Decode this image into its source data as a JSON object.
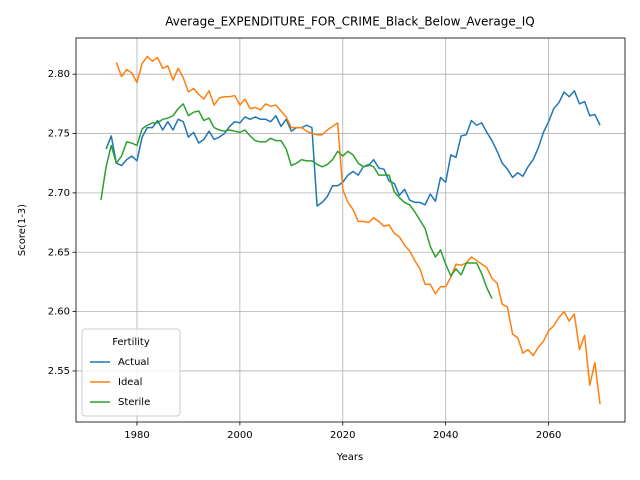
{
  "chart_data": {
    "type": "line",
    "title": "Average_EXPENDITURE_FOR_CRIME_Black_Below_Average_IQ",
    "x_label": "Years",
    "y_label": "Score(1-3)",
    "legend_title": "Fertility",
    "legend": "lower left",
    "grid": true,
    "xlim": [
      1968.15,
      2074.85
    ],
    "xticks": [
      1980,
      2000,
      2020,
      2040,
      2060
    ],
    "ylim": [
      2.507,
      2.8305
    ],
    "yticks": [
      2.55,
      {
        "value": 2.6,
        "label": "2.60"
      },
      2.65,
      {
        "value": 2.7,
        "label": "2.70"
      },
      2.75,
      {
        "value": 2.8,
        "label": "2.80"
      }
    ],
    "x": [
      1973,
      1974,
      1975,
      1976,
      1977,
      1978,
      1979,
      1980,
      1981,
      1982,
      1983,
      1984,
      1985,
      1986,
      1987,
      1988,
      1989,
      1990,
      1991,
      1992,
      1993,
      1994,
      1995,
      1996,
      1997,
      1998,
      1999,
      2000,
      2001,
      2002,
      2003,
      2004,
      2005,
      2006,
      2007,
      2008,
      2009,
      2010,
      2011,
      2012,
      2013,
      2014,
      2015,
      2016,
      2017,
      2018,
      2019,
      2020,
      2021,
      2022,
      2023,
      2024,
      2025,
      2026,
      2027,
      2028,
      2029,
      2030,
      2031,
      2032,
      2033,
      2034,
      2035,
      2036,
      2037,
      2038,
      2039,
      2040,
      2041,
      2042,
      2043,
      2044,
      2045,
      2046,
      2047,
      2048,
      2049,
      2050,
      2051,
      2052,
      2053,
      2054,
      2055,
      2056,
      2057,
      2058,
      2059,
      2060,
      2061,
      2062,
      2063,
      2064,
      2065,
      2066,
      2067,
      2068,
      2069,
      2070
    ],
    "series": [
      {
        "name": "Actual",
        "color": "#1f77b4",
        "values": [
          null,
          2.737,
          2.748,
          2.725,
          2.723,
          2.728,
          2.731,
          2.727,
          2.747,
          2.755,
          2.755,
          2.761,
          2.753,
          2.76,
          2.753,
          2.762,
          2.76,
          2.747,
          2.751,
          2.742,
          2.745,
          2.752,
          2.745,
          2.747,
          2.75,
          2.756,
          2.76,
          2.759,
          2.764,
          2.762,
          2.764,
          2.762,
          2.762,
          2.76,
          2.765,
          2.756,
          2.762,
          2.752,
          2.755,
          2.755,
          2.757,
          2.755,
          2.689,
          2.692,
          2.697,
          2.706,
          2.706,
          2.709,
          2.715,
          2.718,
          2.715,
          2.722,
          2.723,
          2.728,
          2.721,
          2.72,
          2.71,
          2.708,
          2.698,
          2.703,
          2.694,
          2.692,
          2.692,
          2.69,
          2.699,
          2.693,
          2.713,
          2.709,
          2.732,
          2.73,
          2.748,
          2.749,
          2.761,
          2.757,
          2.759,
          2.751,
          2.744,
          2.735,
          2.725,
          2.72,
          2.713,
          2.717,
          2.714,
          2.722,
          2.728,
          2.738,
          2.751,
          2.76,
          2.771,
          2.776,
          2.785,
          2.781,
          2.786,
          2.775,
          2.777,
          2.765,
          2.766,
          2.757
        ]
      },
      {
        "name": "Ideal",
        "color": "#ff7f0e",
        "values": [
          null,
          null,
          null,
          2.81,
          2.798,
          2.804,
          2.801,
          2.793,
          2.809,
          2.815,
          2.811,
          2.814,
          2.805,
          2.807,
          2.795,
          2.805,
          2.797,
          2.785,
          2.788,
          2.783,
          2.779,
          2.786,
          2.774,
          2.78,
          2.781,
          2.781,
          2.782,
          2.774,
          2.779,
          2.771,
          2.772,
          2.77,
          2.775,
          2.773,
          2.774,
          2.769,
          2.764,
          2.755,
          2.755,
          2.755,
          2.752,
          2.75,
          2.749,
          2.749,
          2.753,
          2.756,
          2.759,
          2.703,
          2.692,
          2.686,
          2.676,
          2.676,
          2.675,
          2.679,
          2.676,
          2.672,
          2.673,
          2.666,
          2.663,
          2.656,
          2.651,
          2.643,
          2.636,
          2.623,
          2.623,
          2.615,
          2.621,
          2.621,
          2.629,
          2.64,
          2.639,
          2.641,
          2.646,
          2.643,
          2.64,
          2.637,
          2.628,
          2.624,
          2.606,
          2.604,
          2.581,
          2.578,
          2.565,
          2.568,
          2.563,
          2.57,
          2.575,
          2.584,
          2.588,
          2.595,
          2.6,
          2.592,
          2.598,
          2.568,
          2.58,
          2.538,
          2.557,
          2.522
        ]
      },
      {
        "name": "Sterile",
        "color": "#2ca02c",
        "values": [
          2.694,
          2.722,
          2.74,
          2.725,
          2.731,
          2.743,
          2.742,
          2.74,
          2.754,
          2.757,
          2.759,
          2.759,
          2.762,
          2.763,
          2.765,
          2.771,
          2.775,
          2.765,
          2.768,
          2.769,
          2.761,
          2.763,
          2.755,
          2.753,
          2.752,
          2.753,
          2.752,
          2.751,
          2.753,
          2.748,
          2.744,
          2.743,
          2.743,
          2.746,
          2.744,
          2.744,
          2.737,
          2.723,
          2.725,
          2.728,
          2.727,
          2.727,
          2.724,
          2.722,
          2.724,
          2.728,
          2.735,
          2.731,
          2.735,
          2.732,
          2.725,
          2.722,
          2.724,
          2.722,
          2.715,
          2.715,
          2.715,
          2.701,
          2.696,
          2.692,
          2.69,
          2.684,
          2.677,
          2.67,
          2.655,
          2.646,
          2.652,
          2.64,
          2.63,
          2.636,
          2.631,
          2.641,
          2.641,
          2.641,
          2.632,
          2.62,
          2.611,
          null,
          null,
          null,
          null,
          null,
          null,
          null,
          null,
          null,
          null,
          null,
          null,
          null,
          null,
          null,
          null,
          null,
          null,
          null,
          null,
          null
        ]
      }
    ]
  }
}
